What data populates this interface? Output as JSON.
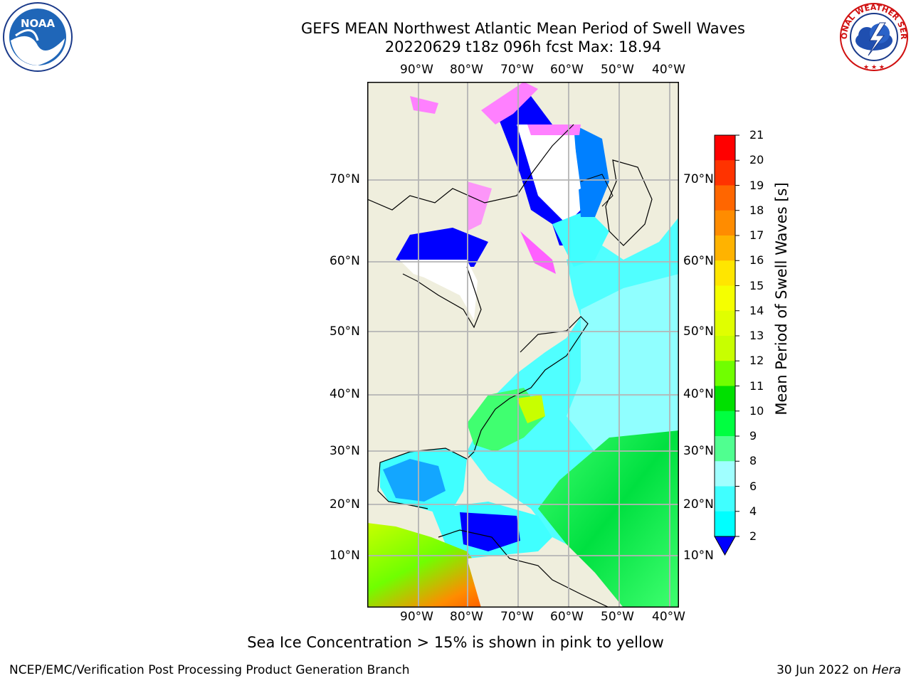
{
  "header": {
    "title_line1": "GEFS MEAN Northwest Atlantic Mean Period of Swell Waves",
    "title_line2": "20220629 t18z 096h fcst   Max: 18.94"
  },
  "logos": {
    "left": "noaa-logo",
    "left_text": "NOAA",
    "right": "nws-logo",
    "right_text": "NATIONAL WEATHER SERVICE"
  },
  "map": {
    "lon_labels": [
      "90°W",
      "80°W",
      "70°W",
      "60°W",
      "50°W",
      "40°W"
    ],
    "lat_labels": [
      "70°N",
      "60°N",
      "50°N",
      "40°N",
      "30°N",
      "20°N",
      "10°N"
    ],
    "colors": {
      "land": "#efeedd",
      "ice_white": "#ffffff",
      "grid": "#b4b4b4"
    }
  },
  "colorbar": {
    "title": "Mean Period of Swell Waves [s]",
    "ticks": [
      "21",
      "20",
      "19",
      "18",
      "17",
      "16",
      "15",
      "14",
      "13",
      "12",
      "11",
      "10",
      "9",
      "8",
      "6",
      "4",
      "2"
    ],
    "colors": [
      "#ff0000",
      "#ff3300",
      "#ff6600",
      "#ff8c00",
      "#ffb300",
      "#ffe600",
      "#f5ff00",
      "#e0ff00",
      "#c8ff00",
      "#70ff00",
      "#00e000",
      "#00ff40",
      "#50ff90",
      "#a0ffff",
      "#40ffff",
      "#00ffff",
      "#0080ff",
      "#0000ff"
    ]
  },
  "notes": {
    "sea_ice": "Sea Ice Concentration > 15% is shown in pink to yellow",
    "org": "NCEP/EMC/Verification Post Processing Product Generation Branch",
    "date_prefix": "30 Jun 2022 on ",
    "host": "Hera"
  }
}
